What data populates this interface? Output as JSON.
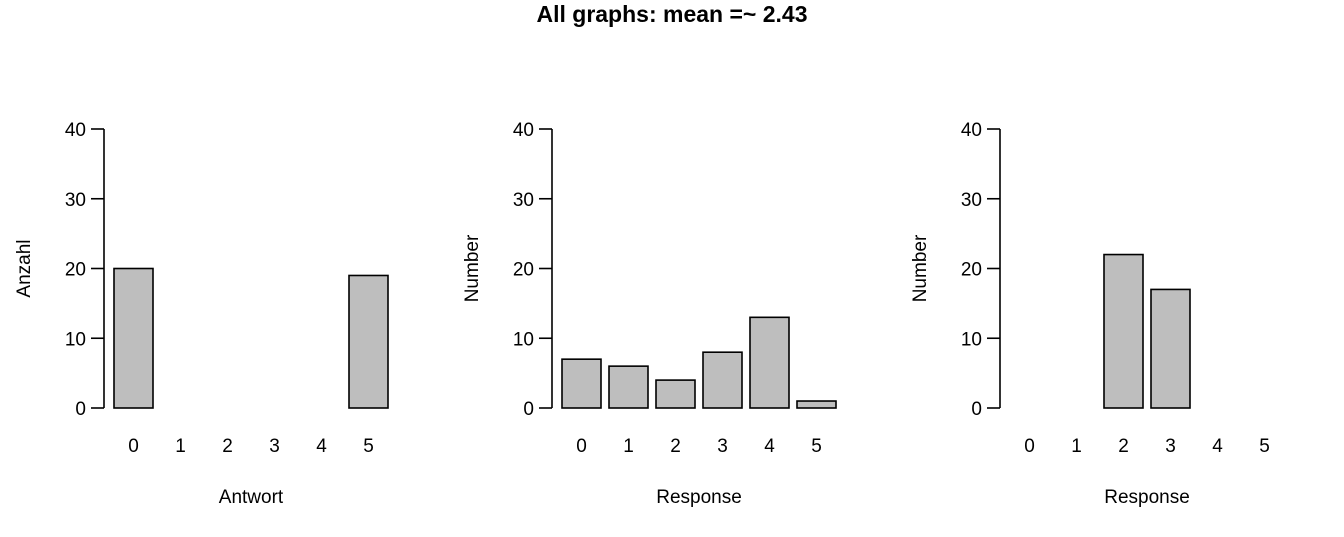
{
  "figure": {
    "title": "All graphs: mean =~ 2.43"
  },
  "colors": {
    "bar_fill": "#bebebe",
    "bar_stroke": "#000000",
    "axis": "#000000",
    "background": "#ffffff"
  },
  "chart_data": [
    {
      "type": "bar",
      "categories": [
        "0",
        "1",
        "2",
        "3",
        "4",
        "5"
      ],
      "values": [
        20,
        0,
        0,
        0,
        0,
        19
      ],
      "xlabel": "Antwort",
      "ylabel": "Anzahl",
      "ylim": [
        0,
        40
      ],
      "yticks": [
        0,
        10,
        20,
        30,
        40
      ],
      "grid": false
    },
    {
      "type": "bar",
      "categories": [
        "0",
        "1",
        "2",
        "3",
        "4",
        "5"
      ],
      "values": [
        7,
        6,
        4,
        8,
        13,
        1
      ],
      "xlabel": "Response",
      "ylabel": "Number",
      "ylim": [
        0,
        40
      ],
      "yticks": [
        0,
        10,
        20,
        30,
        40
      ],
      "grid": false
    },
    {
      "type": "bar",
      "categories": [
        "0",
        "1",
        "2",
        "3",
        "4",
        "5"
      ],
      "values": [
        0,
        0,
        22,
        17,
        0,
        0
      ],
      "xlabel": "Response",
      "ylabel": "Number",
      "ylim": [
        0,
        40
      ],
      "yticks": [
        0,
        10,
        20,
        30,
        40
      ],
      "grid": false
    }
  ]
}
